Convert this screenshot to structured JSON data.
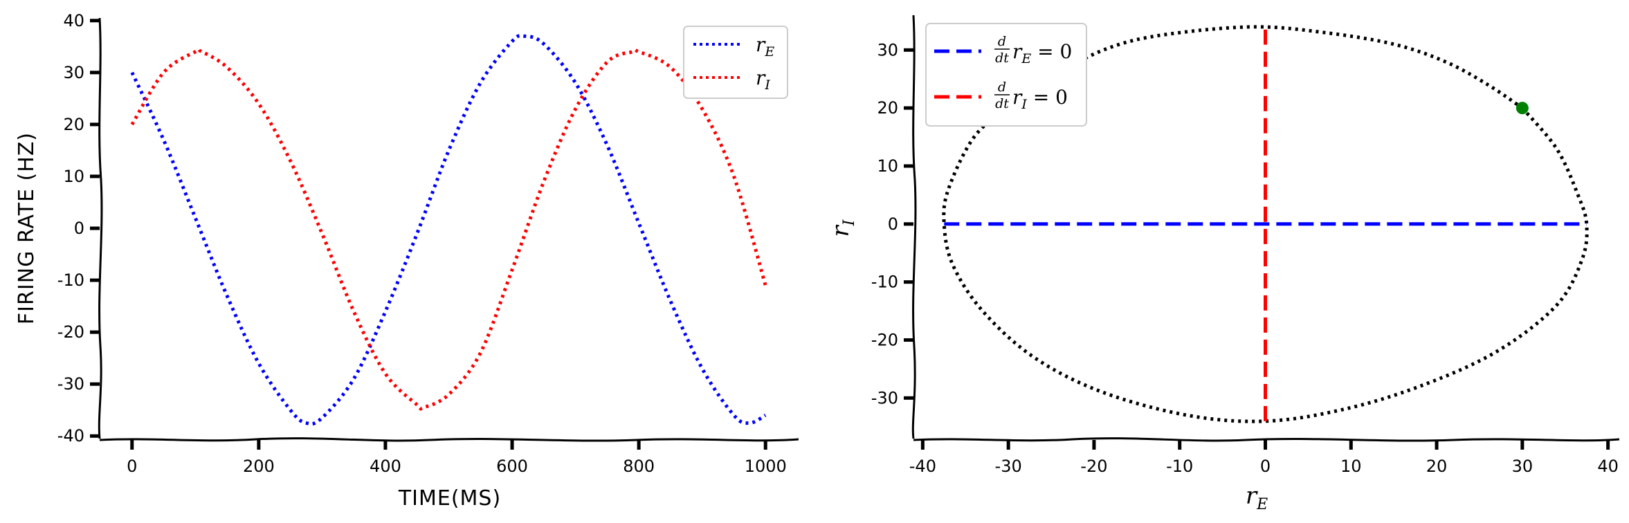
{
  "charts": [
    {
      "type": "line",
      "xlabel": "TIME(MS)",
      "ylabel": "FIRING RATE (HZ)",
      "xlim": [
        -50,
        1050
      ],
      "ylim": [
        -40.5,
        40.5
      ],
      "xticks": [
        0,
        200,
        400,
        600,
        800,
        1000
      ],
      "xtick_labels": [
        "0",
        "200",
        "400",
        "600",
        "800",
        "1000"
      ],
      "yticks": [
        -40,
        -30,
        -20,
        -10,
        0,
        10,
        20,
        30,
        40
      ],
      "ytick_labels": [
        "-40",
        "-30",
        "-20",
        "-10",
        "0",
        "10",
        "20",
        "30",
        "40"
      ],
      "legend": {
        "position": "upper right",
        "entries": [
          {
            "label": "r",
            "subscript": "E",
            "color": "#0000ff",
            "style": "dotted"
          },
          {
            "label": "r",
            "subscript": "I",
            "color": "#ff0000",
            "style": "dotted"
          }
        ]
      },
      "series": [
        {
          "subscript": "E",
          "color": "#0000ff",
          "style": "dotted",
          "points": [
            [
              0,
              30
            ],
            [
              50,
              17
            ],
            [
              100,
              2
            ],
            [
              150,
              -13
            ],
            [
              200,
              -26
            ],
            [
              250,
              -35
            ],
            [
              275,
              -37.5
            ],
            [
              300,
              -36.5
            ],
            [
              350,
              -29
            ],
            [
              400,
              -16
            ],
            [
              450,
              -1
            ],
            [
              500,
              15
            ],
            [
              550,
              28
            ],
            [
              600,
              36
            ],
            [
              620,
              37
            ],
            [
              650,
              35.5
            ],
            [
              700,
              28
            ],
            [
              750,
              16
            ],
            [
              800,
              1
            ],
            [
              850,
              -14
            ],
            [
              900,
              -27
            ],
            [
              950,
              -36
            ],
            [
              975,
              -37.5
            ],
            [
              1000,
              -36
            ]
          ]
        },
        {
          "subscript": "I",
          "color": "#ff0000",
          "style": "dotted",
          "points": [
            [
              0,
              20
            ],
            [
              50,
              30
            ],
            [
              100,
              34
            ],
            [
              110,
              34
            ],
            [
              150,
              31
            ],
            [
              200,
              24
            ],
            [
              250,
              13
            ],
            [
              300,
              -1
            ],
            [
              350,
              -16
            ],
            [
              400,
              -28
            ],
            [
              450,
              -34
            ],
            [
              460,
              -34.5
            ],
            [
              500,
              -32
            ],
            [
              550,
              -24
            ],
            [
              600,
              -8
            ],
            [
              650,
              9
            ],
            [
              700,
              23
            ],
            [
              750,
              32
            ],
            [
              790,
              34
            ],
            [
              800,
              34
            ],
            [
              850,
              31
            ],
            [
              900,
              23
            ],
            [
              950,
              10
            ],
            [
              1000,
              -11
            ]
          ]
        }
      ]
    },
    {
      "type": "line",
      "xlabel": "r",
      "xlabel_sub": "E",
      "ylabel": "r",
      "ylabel_sub": "I",
      "xlim": [
        -41,
        41
      ],
      "ylim": [
        -37,
        36
      ],
      "xticks": [
        -40,
        -30,
        -20,
        -10,
        0,
        10,
        20,
        30,
        40
      ],
      "xtick_labels": [
        "-40",
        "-30",
        "-20",
        "-10",
        "0",
        "10",
        "20",
        "30",
        "40"
      ],
      "yticks": [
        -30,
        -20,
        -10,
        0,
        10,
        20,
        30
      ],
      "ytick_labels": [
        "-30",
        "-20",
        "-10",
        "0",
        "10",
        "20",
        "30"
      ],
      "legend": {
        "position": "upper left",
        "entries": [
          {
            "frac_num": "d",
            "frac_den": "dt",
            "label": "r",
            "subscript": "E",
            "equation": " = 0",
            "color": "#0000ff",
            "style": "dashed"
          },
          {
            "frac_num": "d",
            "frac_den": "dt",
            "label": "r",
            "subscript": "I",
            "equation": " = 0",
            "color": "#ff0000",
            "style": "dashed"
          }
        ]
      },
      "series": [
        {
          "name_key": "trajectory",
          "color": "#000000",
          "style": "dotted",
          "points": [
            [
              30,
              20
            ],
            [
              34,
              13
            ],
            [
              36.5,
              5
            ],
            [
              37.5,
              0
            ],
            [
              37,
              -6
            ],
            [
              34,
              -14
            ],
            [
              27,
              -22
            ],
            [
              18,
              -28
            ],
            [
              9,
              -32
            ],
            [
              0,
              -34
            ],
            [
              -9,
              -33
            ],
            [
              -19,
              -29
            ],
            [
              -27,
              -23
            ],
            [
              -33,
              -15
            ],
            [
              -36.5,
              -7
            ],
            [
              -37.5,
              0
            ],
            [
              -37,
              6
            ],
            [
              -34,
              15
            ],
            [
              -30,
              20
            ],
            [
              -23,
              27
            ],
            [
              -17,
              31
            ],
            [
              -10,
              33
            ],
            [
              -1,
              34
            ],
            [
              7,
              33
            ],
            [
              15,
              31
            ],
            [
              21,
              28
            ],
            [
              26,
              24
            ],
            [
              30,
              20
            ]
          ]
        },
        {
          "subscript": "E",
          "color": "#0000ff",
          "style": "dashed",
          "points": [
            [
              -37.5,
              0
            ],
            [
              37.5,
              0
            ]
          ]
        },
        {
          "subscript": "I",
          "color": "#ff0000",
          "style": "dashed",
          "points": [
            [
              0,
              -34
            ],
            [
              0,
              34
            ]
          ]
        }
      ],
      "marker": {
        "x": 30,
        "y": 20,
        "color": "#008000"
      }
    }
  ]
}
